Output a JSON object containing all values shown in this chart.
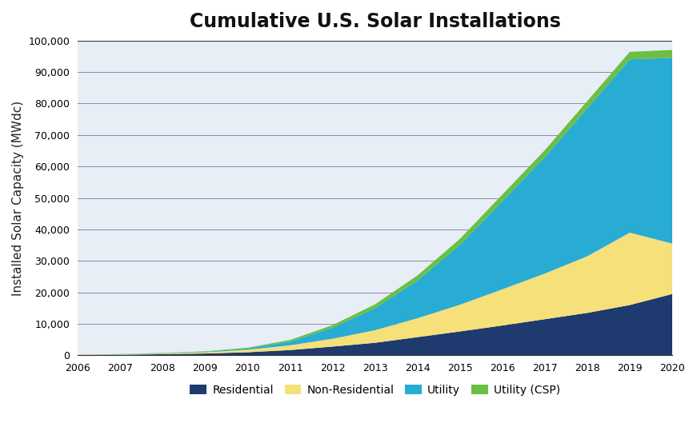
{
  "title": "Cumulative U.S. Solar Installations",
  "ylabel": "Installed Solar Capacity (MWdc)",
  "years": [
    2006,
    2007,
    2008,
    2009,
    2010,
    2011,
    2012,
    2013,
    2014,
    2015,
    2016,
    2017,
    2018,
    2019,
    2020
  ],
  "residential": [
    100,
    200,
    380,
    600,
    1000,
    1700,
    2800,
    4000,
    5800,
    7600,
    9500,
    11500,
    13500,
    16000,
    19500
  ],
  "non_residential": [
    60,
    120,
    200,
    380,
    800,
    1500,
    2500,
    4000,
    6000,
    8500,
    11500,
    14500,
    18000,
    23000,
    16000
  ],
  "utility": [
    10,
    30,
    80,
    150,
    400,
    1200,
    3500,
    7000,
    12000,
    19000,
    28000,
    37000,
    47000,
    55000,
    59000
  ],
  "utility_csp": [
    30,
    80,
    120,
    170,
    250,
    500,
    800,
    1200,
    1600,
    1900,
    2100,
    2200,
    2300,
    2400,
    2500
  ],
  "colors": {
    "residential": "#1e3a6e",
    "non_residential": "#f5e07a",
    "utility": "#29acd4",
    "utility_csp": "#6abf44"
  },
  "legend_labels": [
    "Residential",
    "Non-Residential",
    "Utility",
    "Utility (CSP)"
  ],
  "ylim": [
    0,
    100000
  ],
  "yticks": [
    0,
    10000,
    20000,
    30000,
    40000,
    50000,
    60000,
    70000,
    80000,
    90000,
    100000
  ],
  "background_color": "#e8eef5",
  "figure_background": "#ffffff",
  "grid_color": "#8888aa",
  "title_fontsize": 17,
  "label_fontsize": 11,
  "tick_fontsize": 9
}
